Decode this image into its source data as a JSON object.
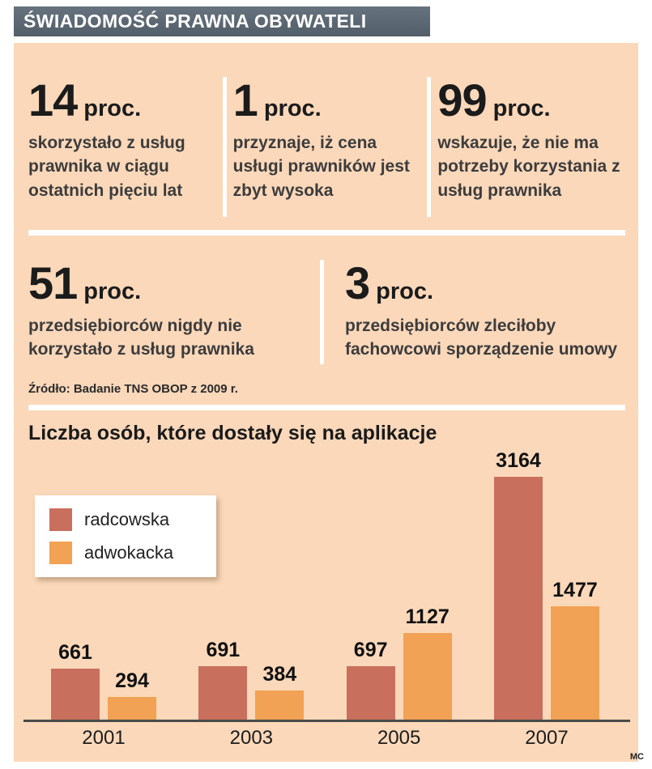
{
  "header": {
    "title": "ŚWIADOMOŚĆ PRAWNA OBYWATELI"
  },
  "stats_row1": [
    {
      "number": "14",
      "unit": "proc.",
      "desc": "skorzystało z usług prawnika w ciągu ostatnich pięciu lat"
    },
    {
      "number": "1",
      "unit": "proc.",
      "desc": "przyznaje, iż cena usługi prawników jest zbyt wysoka"
    },
    {
      "number": "99",
      "unit": "proc.",
      "desc": "wskazuje, że nie ma potrzeby korzystania z usług prawnika"
    }
  ],
  "stats_row2": [
    {
      "number": "51",
      "unit": "proc.",
      "desc": "przedsiębiorców nigdy nie korzystało z usług prawnika"
    },
    {
      "number": "3",
      "unit": "proc.",
      "desc": "przedsiębiorców zleciłoby fachowcowi sporządzenie umowy"
    }
  ],
  "source": "Źródło: Badanie TNS OBOP z 2009 r.",
  "credit": "MC",
  "colors": {
    "background": "#fbd8ba",
    "header_bar": "#5b6772",
    "divider": "#ffffff",
    "radcowska": "#c96f5d",
    "adwokacka": "#f1a254"
  },
  "chart_data": {
    "type": "bar",
    "title": "Liczba osób, które dostały się na aplikacje",
    "categories": [
      "2001",
      "2003",
      "2005",
      "2007"
    ],
    "series": [
      {
        "name": "radcowska",
        "color": "#c96f5d",
        "values": [
          661,
          691,
          697,
          3164
        ]
      },
      {
        "name": "adwokacka",
        "color": "#f1a254",
        "values": [
          294,
          384,
          1127,
          1477
        ]
      }
    ],
    "xlabel": "",
    "ylabel": "",
    "ylim": [
      0,
      3300
    ],
    "grid": false,
    "legend_position": "upper-left"
  }
}
